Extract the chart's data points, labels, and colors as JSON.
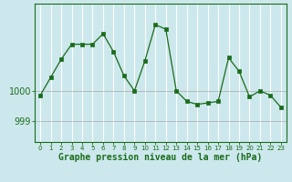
{
  "x": [
    0,
    1,
    2,
    3,
    4,
    5,
    6,
    7,
    8,
    9,
    10,
    11,
    12,
    13,
    14,
    15,
    16,
    17,
    18,
    19,
    20,
    21,
    22,
    23
  ],
  "y": [
    999.85,
    1000.45,
    1001.05,
    1001.55,
    1001.55,
    1001.55,
    1001.9,
    1001.3,
    1000.5,
    1000.0,
    1001.0,
    1002.2,
    1002.05,
    1000.0,
    999.65,
    999.55,
    999.6,
    999.65,
    1001.1,
    1000.65,
    999.8,
    1000.0,
    999.85,
    999.45
  ],
  "line_color": "#1a6b1a",
  "marker": "s",
  "marker_size": 2.5,
  "bg_color": "#cce8ec",
  "plot_bg_color": "#cce8ec",
  "grid_color_h": "#aaaaaa",
  "grid_color_v": "#ffffff",
  "axis_color": "#1a6b1a",
  "xlabel": "Graphe pression niveau de la mer (hPa)",
  "xlabel_fontsize": 7,
  "yticks": [
    999,
    1000
  ],
  "ylim": [
    998.3,
    1002.9
  ],
  "xlim": [
    -0.5,
    23.5
  ],
  "linewidth": 0.9
}
